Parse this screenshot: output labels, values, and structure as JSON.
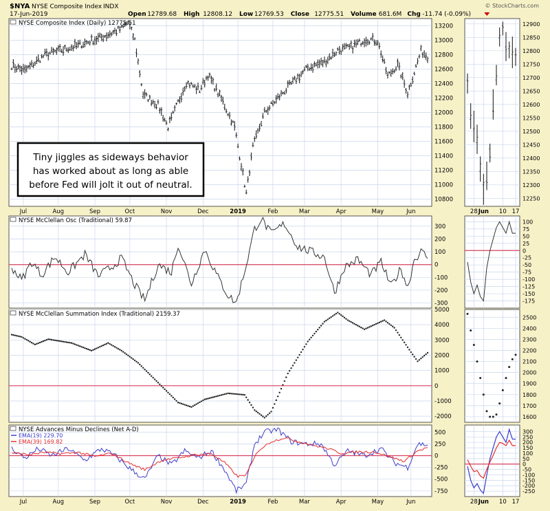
{
  "header": {
    "symbol": "$NYA",
    "name": "NYSE Composite Index",
    "exchange": "INDX",
    "date": "17-Jun-2019",
    "credit": "© StockCharts.com",
    "quote": [
      {
        "label": "Open",
        "value": "12789.68"
      },
      {
        "label": "High",
        "value": "12808.12"
      },
      {
        "label": "Low",
        "value": "12769.53"
      },
      {
        "label": "Close",
        "value": "12775.51"
      },
      {
        "label": "Volume",
        "value": "681.6M"
      },
      {
        "label": "Chg",
        "value": "-11.74 (-0.09%)"
      }
    ]
  },
  "annotation": {
    "lines": [
      "Tiny jiggles as sideways behavior",
      "has worked about as long as able",
      "before Fed will jolt it out of neutral."
    ]
  },
  "colors": {
    "background": "#f7f1c8",
    "plot": "#ffffff",
    "grid": "#c9d6ea",
    "zero_line": "#d9415f",
    "price": "#222222",
    "ema19": "#3d3dc8",
    "ema39": "#e52a2a",
    "down_triangle": "#cc0000"
  },
  "chart_data": [
    {
      "panel": "price",
      "type": "ohlc",
      "title": "NYSE Composite Index (Daily) 12775.51",
      "x_months": [
        "Jul",
        "Aug",
        "Sep",
        "Oct",
        "Nov",
        "Dec",
        "2019",
        "Feb",
        "Mar",
        "Apr",
        "May",
        "Jun"
      ],
      "ylim": [
        10700,
        13300
      ],
      "y_ticks": [
        10800,
        11000,
        11200,
        11400,
        11600,
        11800,
        12000,
        12200,
        12400,
        12600,
        12800,
        13000,
        13200
      ],
      "trend": [
        [
          0,
          12650
        ],
        [
          8,
          12580
        ],
        [
          20,
          12800
        ],
        [
          40,
          12930
        ],
        [
          55,
          13050
        ],
        [
          66,
          13160
        ],
        [
          70,
          13250
        ],
        [
          74,
          13000
        ],
        [
          79,
          12250
        ],
        [
          88,
          12100
        ],
        [
          94,
          11800
        ],
        [
          105,
          12420
        ],
        [
          113,
          12310
        ],
        [
          118,
          12520
        ],
        [
          126,
          12190
        ],
        [
          134,
          11800
        ],
        [
          141,
          10880
        ],
        [
          145,
          11520
        ],
        [
          152,
          12000
        ],
        [
          160,
          12200
        ],
        [
          170,
          12440
        ],
        [
          178,
          12620
        ],
        [
          188,
          12700
        ],
        [
          196,
          12860
        ],
        [
          204,
          12900
        ],
        [
          213,
          13020
        ],
        [
          220,
          12990
        ],
        [
          226,
          12500
        ],
        [
          232,
          12660
        ],
        [
          238,
          12270
        ],
        [
          246,
          12850
        ],
        [
          250,
          12775
        ]
      ],
      "total_days": 251
    },
    {
      "panel": "price-inset",
      "type": "ohlc",
      "x_labels": [
        "28",
        "Jun",
        "10",
        "17"
      ],
      "ylim": [
        12220,
        12920
      ],
      "y_ticks": [
        12250,
        12300,
        12350,
        12400,
        12450,
        12500,
        12550,
        12600,
        12650,
        12700,
        12750,
        12800,
        12850,
        12900
      ],
      "values": [
        12680,
        12560,
        12520,
        12470,
        12360,
        12280,
        12330,
        12420,
        12600,
        12710,
        12850,
        12880,
        12820,
        12800,
        12790,
        12775
      ]
    },
    {
      "panel": "mcclellan-osc",
      "type": "line",
      "title": "NYSE McClellan Osc (Traditional) 59.87",
      "ylim": [
        -340,
        380
      ],
      "y_ticks": [
        -300,
        -200,
        -100,
        0,
        100,
        200,
        300
      ],
      "trend": [
        [
          0,
          -20
        ],
        [
          6,
          -120
        ],
        [
          12,
          20
        ],
        [
          18,
          -80
        ],
        [
          26,
          60
        ],
        [
          34,
          -60
        ],
        [
          44,
          80
        ],
        [
          52,
          -90
        ],
        [
          60,
          -20
        ],
        [
          66,
          50
        ],
        [
          74,
          -160
        ],
        [
          80,
          -280
        ],
        [
          88,
          0
        ],
        [
          96,
          -60
        ],
        [
          100,
          160
        ],
        [
          108,
          -150
        ],
        [
          116,
          120
        ],
        [
          124,
          -100
        ],
        [
          130,
          -240
        ],
        [
          135,
          -300
        ],
        [
          141,
          0
        ],
        [
          146,
          280
        ],
        [
          150,
          360
        ],
        [
          156,
          240
        ],
        [
          164,
          320
        ],
        [
          172,
          140
        ],
        [
          180,
          100
        ],
        [
          188,
          60
        ],
        [
          194,
          -220
        ],
        [
          200,
          -20
        ],
        [
          208,
          40
        ],
        [
          216,
          -80
        ],
        [
          222,
          20
        ],
        [
          228,
          -170
        ],
        [
          234,
          -30
        ],
        [
          238,
          -180
        ],
        [
          242,
          40
        ],
        [
          246,
          100
        ],
        [
          250,
          60
        ]
      ],
      "total_days": 251
    },
    {
      "panel": "mcclellan-osc-inset",
      "type": "line",
      "ylim": [
        -200,
        120
      ],
      "y_ticks": [
        -175,
        -150,
        -125,
        -100,
        -75,
        -50,
        -25,
        0,
        25,
        50,
        75,
        100
      ],
      "values": [
        -40,
        -110,
        -150,
        -120,
        -160,
        -175,
        -60,
        0,
        40,
        80,
        100,
        80,
        60,
        100,
        60,
        60
      ]
    },
    {
      "panel": "summation",
      "type": "scatter",
      "title": "NYSE McClellan Summation Index (Traditional) 2159.37",
      "ylim": [
        -2400,
        5000
      ],
      "y_ticks": [
        -2000,
        -1000,
        0,
        1000,
        2000,
        3000,
        4000,
        5000
      ],
      "trend": [
        [
          0,
          3350
        ],
        [
          6,
          3200
        ],
        [
          14,
          2700
        ],
        [
          22,
          3050
        ],
        [
          36,
          2800
        ],
        [
          48,
          2300
        ],
        [
          58,
          2800
        ],
        [
          66,
          2300
        ],
        [
          76,
          1500
        ],
        [
          88,
          200
        ],
        [
          100,
          -1100
        ],
        [
          108,
          -1400
        ],
        [
          116,
          -900
        ],
        [
          130,
          -500
        ],
        [
          140,
          -600
        ],
        [
          146,
          -1600
        ],
        [
          152,
          -2100
        ],
        [
          156,
          -1700
        ],
        [
          166,
          800
        ],
        [
          178,
          2900
        ],
        [
          188,
          4200
        ],
        [
          196,
          4800
        ],
        [
          202,
          4300
        ],
        [
          212,
          3700
        ],
        [
          224,
          4300
        ],
        [
          230,
          3800
        ],
        [
          240,
          2200
        ],
        [
          244,
          1600
        ],
        [
          250,
          2159
        ]
      ],
      "total_days": 251
    },
    {
      "panel": "summation-inset",
      "type": "scatter",
      "ylim": [
        1550,
        2570
      ],
      "y_ticks": [
        1600,
        1700,
        1800,
        1900,
        2000,
        2100,
        2200,
        2300,
        2400,
        2500
      ],
      "values": [
        2530,
        2380,
        2250,
        2100,
        1950,
        1800,
        1650,
        1600,
        1600,
        1620,
        1720,
        1840,
        1950,
        2050,
        2120,
        2160
      ]
    },
    {
      "panel": "advances-declines",
      "type": "line",
      "title": "NYSE Advances Minus Declines (Net A-D)",
      "ylim": [
        -870,
        650
      ],
      "y_ticks": [
        -750,
        -500,
        -250,
        0,
        250,
        500
      ],
      "series": [
        {
          "name": "EMA(19) 229.70",
          "color": "#3d3dc8",
          "trend": [
            [
              0,
              150
            ],
            [
              8,
              -50
            ],
            [
              16,
              150
            ],
            [
              24,
              0
            ],
            [
              34,
              150
            ],
            [
              44,
              -100
            ],
            [
              54,
              150
            ],
            [
              62,
              0
            ],
            [
              72,
              -300
            ],
            [
              80,
              -500
            ],
            [
              88,
              0
            ],
            [
              96,
              -200
            ],
            [
              104,
              100
            ],
            [
              112,
              -50
            ],
            [
              120,
              100
            ],
            [
              128,
              -300
            ],
            [
              135,
              -750
            ],
            [
              141,
              -600
            ],
            [
              146,
              250
            ],
            [
              152,
              500
            ],
            [
              160,
              550
            ],
            [
              168,
              300
            ],
            [
              176,
              250
            ],
            [
              186,
              250
            ],
            [
              194,
              -200
            ],
            [
              202,
              100
            ],
            [
              212,
              0
            ],
            [
              222,
              150
            ],
            [
              230,
              -150
            ],
            [
              238,
              -250
            ],
            [
              244,
              250
            ],
            [
              250,
              230
            ]
          ]
        },
        {
          "name": "EMA(39) 169.82",
          "color": "#e52a2a",
          "trend": [
            [
              0,
              60
            ],
            [
              10,
              20
            ],
            [
              20,
              70
            ],
            [
              30,
              40
            ],
            [
              40,
              70
            ],
            [
              50,
              -20
            ],
            [
              60,
              50
            ],
            [
              70,
              -150
            ],
            [
              80,
              -300
            ],
            [
              90,
              -100
            ],
            [
              100,
              -50
            ],
            [
              110,
              20
            ],
            [
              120,
              40
            ],
            [
              128,
              -150
            ],
            [
              136,
              -450
            ],
            [
              141,
              -400
            ],
            [
              148,
              100
            ],
            [
              156,
              300
            ],
            [
              164,
              380
            ],
            [
              172,
              300
            ],
            [
              180,
              230
            ],
            [
              190,
              150
            ],
            [
              198,
              50
            ],
            [
              208,
              80
            ],
            [
              218,
              80
            ],
            [
              228,
              -30
            ],
            [
              236,
              -120
            ],
            [
              244,
              100
            ],
            [
              250,
              170
            ]
          ]
        }
      ],
      "total_days": 251
    },
    {
      "panel": "advances-declines-inset",
      "type": "line",
      "ylim": [
        -300,
        360
      ],
      "y_ticks": [
        -250,
        -200,
        -150,
        -100,
        -50,
        0,
        50,
        100,
        150,
        200,
        250,
        300
      ],
      "series": [
        {
          "name": "EMA(19)",
          "color": "#3d3dc8",
          "values": [
            -20,
            -150,
            -220,
            -180,
            -240,
            -270,
            -100,
            50,
            150,
            250,
            300,
            250,
            200,
            320,
            230,
            230
          ]
        },
        {
          "name": "EMA(39)",
          "color": "#e52a2a",
          "values": [
            40,
            -20,
            -70,
            -60,
            -110,
            -130,
            -50,
            20,
            80,
            150,
            200,
            190,
            170,
            220,
            170,
            170
          ]
        }
      ]
    }
  ]
}
